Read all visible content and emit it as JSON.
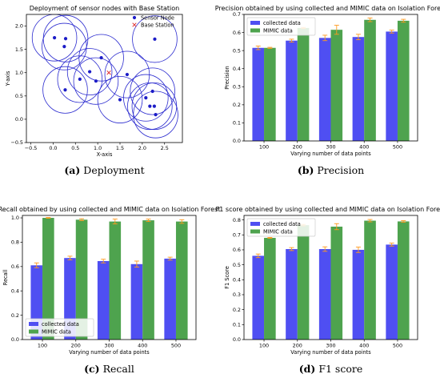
{
  "colors": {
    "series_a": "#4f4ff2",
    "series_b": "#4ea34e",
    "error": "#ff9a1f",
    "circle": "#2b2bcf",
    "node": "#1c1cc7",
    "base": "#e03030"
  },
  "chart_data": [
    {
      "type": "scatter",
      "title": "Deployment of sensor nodes with Base Station",
      "xlabel": "X-axis",
      "ylabel": "Y-axis",
      "xlim": [
        -0.6,
        2.9
      ],
      "ylim": [
        -0.5,
        2.25
      ],
      "xticks": [
        -0.5,
        0.0,
        0.5,
        1.0,
        1.5,
        2.0,
        2.5
      ],
      "yticks": [
        -0.5,
        0.0,
        0.5,
        1.0,
        1.5,
        2.0
      ],
      "xtick_labels": [
        "−0.5",
        "0.0",
        "0.5",
        "1.0",
        "1.5",
        "2.0",
        "2.5"
      ],
      "ytick_labels": [
        "−0.5",
        "0.0",
        "0.5",
        "1.0",
        "1.5",
        "2.0"
      ],
      "grid": false,
      "legend": [
        "Sensor Node",
        "Base Station"
      ],
      "radius": 0.5,
      "nodes": [
        [
          0.03,
          1.75
        ],
        [
          0.28,
          1.73
        ],
        [
          0.25,
          1.56
        ],
        [
          2.28,
          1.72
        ],
        [
          1.08,
          1.32
        ],
        [
          0.82,
          1.02
        ],
        [
          0.6,
          0.86
        ],
        [
          0.96,
          0.82
        ],
        [
          1.66,
          0.96
        ],
        [
          0.27,
          0.63
        ],
        [
          2.23,
          0.6
        ],
        [
          1.5,
          0.42
        ],
        [
          2.08,
          0.46
        ],
        [
          2.17,
          0.28
        ],
        [
          2.27,
          0.28
        ],
        [
          2.3,
          0.1
        ]
      ],
      "base_station": [
        1.25,
        1.0
      ],
      "caption_prefix": "(a)",
      "caption": "Deployment"
    },
    {
      "type": "bar",
      "title": "Precision obtained by using collected and MIMIC data on Isolation Forest",
      "xlabel": "Varying number of data points",
      "ylabel": "Precision",
      "categories": [
        "100",
        "200",
        "300",
        "400",
        "500"
      ],
      "ylim": [
        0,
        0.7
      ],
      "yticks": [
        0.0,
        0.1,
        0.2,
        0.3,
        0.4,
        0.5,
        0.6,
        0.7
      ],
      "ytick_labels": [
        "0.0",
        "0.1",
        "0.2",
        "0.3",
        "0.4",
        "0.5",
        "0.6",
        "0.7"
      ],
      "legend_position": "top-left",
      "series": [
        {
          "name": "collected data",
          "values": [
            0.515,
            0.555,
            0.57,
            0.575,
            0.605
          ],
          "errors": [
            0.01,
            0.008,
            0.015,
            0.015,
            0.008
          ]
        },
        {
          "name": "MIMIC data",
          "values": [
            0.515,
            0.625,
            0.615,
            0.67,
            0.665
          ],
          "errors": [
            0.003,
            0.003,
            0.025,
            0.01,
            0.008
          ]
        }
      ],
      "caption_prefix": "(b)",
      "caption": "Precision"
    },
    {
      "type": "bar",
      "title": "Recall obtained by using collected and MIMIC data on Isolation Forest",
      "xlabel": "Varying number of data points",
      "ylabel": "Recall",
      "categories": [
        "100",
        "200",
        "300",
        "400",
        "500"
      ],
      "ylim": [
        0,
        1.02
      ],
      "yticks": [
        0.0,
        0.2,
        0.4,
        0.6,
        0.8,
        1.0
      ],
      "ytick_labels": [
        "0.0",
        "0.2",
        "0.4",
        "0.6",
        "0.8",
        "1.0"
      ],
      "legend_position": "bottom-left",
      "series": [
        {
          "name": "collected data",
          "values": [
            0.61,
            0.67,
            0.645,
            0.62,
            0.665
          ],
          "errors": [
            0.02,
            0.015,
            0.015,
            0.025,
            0.012
          ]
        },
        {
          "name": "MIMIC data",
          "values": [
            1.0,
            0.985,
            0.97,
            0.98,
            0.97
          ],
          "errors": [
            0.003,
            0.008,
            0.02,
            0.01,
            0.015
          ]
        }
      ],
      "caption_prefix": "(c)",
      "caption": "Recall"
    },
    {
      "type": "bar",
      "title": "F1 score obtained by using collected and MIMIC data on Isolation Forest",
      "xlabel": "Varying number of data points",
      "ylabel": "F1 Score",
      "categories": [
        "100",
        "200",
        "300",
        "400",
        "500"
      ],
      "ylim": [
        0,
        0.83
      ],
      "yticks": [
        0.0,
        0.1,
        0.2,
        0.3,
        0.4,
        0.5,
        0.6,
        0.7,
        0.8
      ],
      "ytick_labels": [
        "0.0",
        "0.1",
        "0.2",
        "0.3",
        "0.4",
        "0.5",
        "0.6",
        "0.7",
        "0.8"
      ],
      "legend_position": "top-left",
      "series": [
        {
          "name": "collected data",
          "values": [
            0.56,
            0.605,
            0.605,
            0.6,
            0.635
          ],
          "errors": [
            0.012,
            0.01,
            0.015,
            0.018,
            0.01
          ]
        },
        {
          "name": "MIMIC data",
          "values": [
            0.68,
            0.765,
            0.755,
            0.795,
            0.79
          ],
          "errors": [
            0.003,
            0.005,
            0.02,
            0.008,
            0.005
          ]
        }
      ],
      "caption_prefix": "(d)",
      "caption": "F1 score"
    }
  ]
}
